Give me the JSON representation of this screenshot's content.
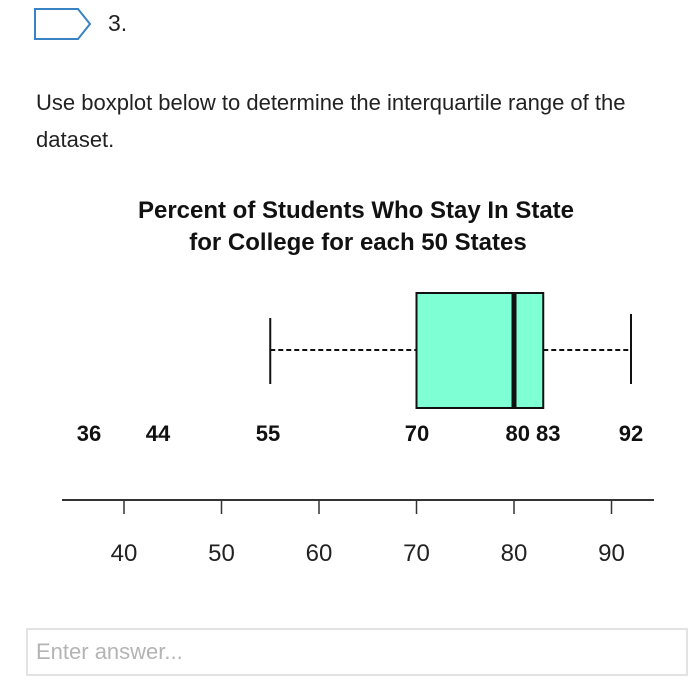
{
  "question": {
    "number": "3.",
    "prompt": "Use boxplot below to determine the interquartile range of the dataset."
  },
  "chart_data": {
    "type": "boxplot",
    "title": [
      "Percent of Students Who Stay In State",
      "for College for each 50 States"
    ],
    "min": 55,
    "q1": 70,
    "median": 80,
    "q3": 83,
    "max": 92,
    "value_labels": [
      "36",
      "44",
      "55",
      "70",
      "80 83",
      "92"
    ],
    "axis_ticks": [
      40,
      50,
      60,
      70,
      80,
      90
    ],
    "xlim": [
      30,
      94
    ],
    "box_color": "#7fffd4"
  },
  "answer": {
    "placeholder": "Enter answer..."
  }
}
